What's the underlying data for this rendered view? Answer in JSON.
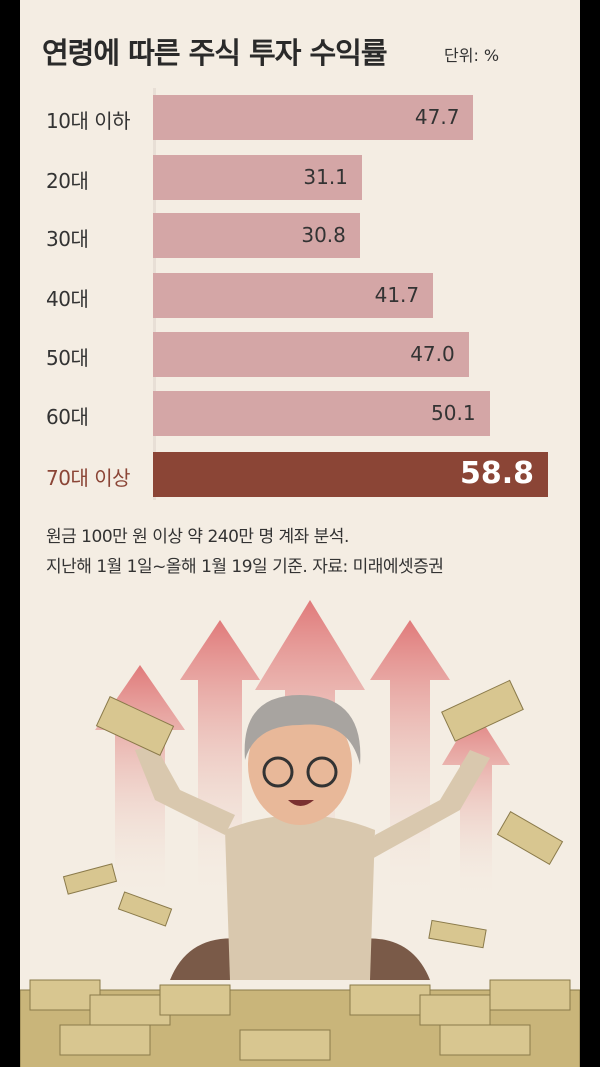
{
  "chart_data": {
    "type": "bar",
    "orientation": "horizontal",
    "title": "연령에 따른 주식 투자 수익률",
    "unit": "단위: %",
    "categories": [
      "10대 이하",
      "20대",
      "30대",
      "40대",
      "50대",
      "60대",
      "70대 이상"
    ],
    "values": [
      47.7,
      31.1,
      30.8,
      41.7,
      47.0,
      50.1,
      58.8
    ],
    "value_labels": [
      "47.7",
      "31.1",
      "30.8",
      "41.7",
      "47.0",
      "50.1",
      "58.8"
    ],
    "highlight_index": 6,
    "xlim": [
      0,
      60
    ],
    "grid": false,
    "colors": {
      "bar": "#d4a6a6",
      "highlight": "#8b4536",
      "highlight_label": "#8b4536"
    }
  },
  "notes": [
    "원금 100만 원 이상 약 240만 명 계좌 분석.",
    "지난해 1월 1일~올해 1월 19일 기준. 자료: 미래에셋증권"
  ]
}
